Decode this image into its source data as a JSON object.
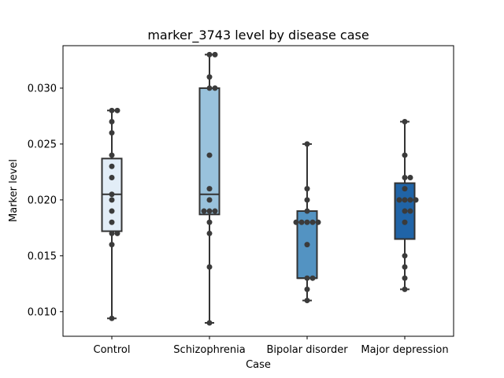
{
  "chart_data": {
    "type": "box",
    "title": "marker_3743 level by disease case",
    "xlabel": "Case",
    "ylabel": "Marker level",
    "ylim": [
      0.0078,
      0.0338
    ],
    "yticks": [
      {
        "value": 0.01,
        "label": "0.010"
      },
      {
        "value": 0.015,
        "label": "0.015"
      },
      {
        "value": 0.02,
        "label": "0.020"
      },
      {
        "value": 0.025,
        "label": "0.025"
      },
      {
        "value": 0.03,
        "label": "0.030"
      }
    ],
    "grid": false,
    "categories": [
      {
        "name": "Control",
        "color": "#e2edf7",
        "box": {
          "whisker_low": 0.0094,
          "q1": 0.0172,
          "median": 0.0205,
          "q3": 0.0237,
          "whisker_high": 0.028
        },
        "points": [
          0.028,
          0.028,
          0.027,
          0.026,
          0.024,
          0.023,
          0.022,
          0.0205,
          0.02,
          0.019,
          0.018,
          0.017,
          0.017,
          0.016,
          0.0094
        ]
      },
      {
        "name": "Schizophrenia",
        "color": "#99c2dc",
        "box": {
          "whisker_low": 0.009,
          "q1": 0.0187,
          "median": 0.0205,
          "q3": 0.03,
          "whisker_high": 0.033
        },
        "points": [
          0.033,
          0.033,
          0.031,
          0.03,
          0.03,
          0.024,
          0.021,
          0.02,
          0.019,
          0.019,
          0.019,
          0.018,
          0.017,
          0.014,
          0.009
        ]
      },
      {
        "name": "Bipolar disorder",
        "color": "#5393c2",
        "box": {
          "whisker_low": 0.011,
          "q1": 0.013,
          "median": 0.013,
          "q3": 0.019,
          "whisker_high": 0.025
        },
        "points": [
          0.025,
          0.021,
          0.02,
          0.019,
          0.018,
          0.018,
          0.018,
          0.018,
          0.018,
          0.016,
          0.013,
          0.013,
          0.012,
          0.011
        ]
      },
      {
        "name": "Major depression",
        "color": "#2064a7",
        "box": {
          "whisker_low": 0.012,
          "q1": 0.0165,
          "median": 0.0165,
          "q3": 0.0215,
          "whisker_high": 0.027
        },
        "points": [
          0.027,
          0.024,
          0.022,
          0.022,
          0.021,
          0.02,
          0.02,
          0.02,
          0.02,
          0.019,
          0.019,
          0.018,
          0.015,
          0.014,
          0.013,
          0.012
        ]
      }
    ]
  }
}
